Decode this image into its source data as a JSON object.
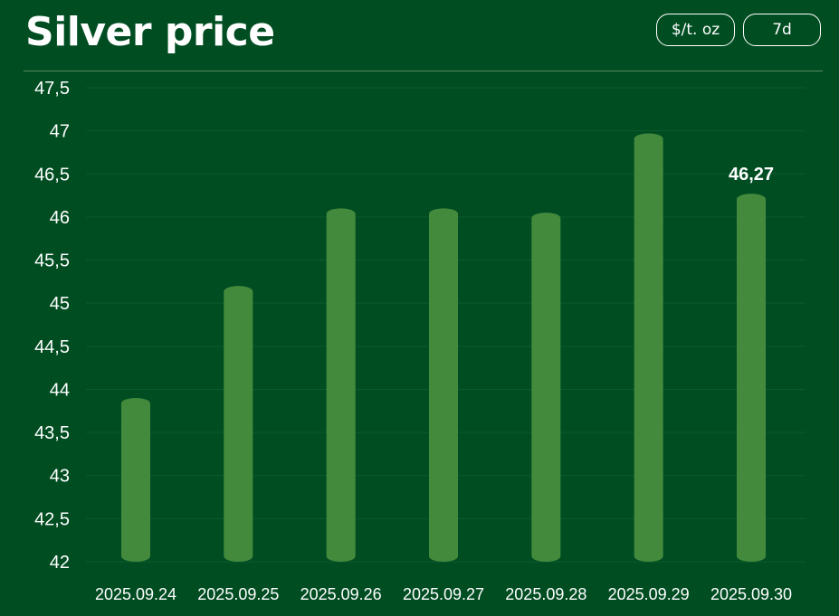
{
  "header": {
    "title": "Silver price",
    "unit_label": "$/t. oz",
    "range_label": "7d"
  },
  "colors": {
    "background": "#004d22",
    "bar": "#448a3d",
    "grid": "#0d5a2b",
    "text": "#ffffff"
  },
  "chart_data": {
    "type": "bar",
    "title": "Silver price",
    "categories": [
      "2025.09.24",
      "2025.09.25",
      "2025.09.26",
      "2025.09.27",
      "2025.09.28",
      "2025.09.29",
      "2025.09.30"
    ],
    "values": [
      43.9,
      45.2,
      46.1,
      46.1,
      46.05,
      46.97,
      46.27
    ],
    "ylim": [
      42,
      47.5
    ],
    "yticks": [
      "42",
      "42,5",
      "43",
      "43,5",
      "44",
      "44,5",
      "45",
      "45,5",
      "46",
      "46,5",
      "47",
      "47,5"
    ],
    "data_labels": [
      {
        "category": "2025.09.30",
        "text": "46,27"
      }
    ],
    "grid": true,
    "legend": "none"
  }
}
